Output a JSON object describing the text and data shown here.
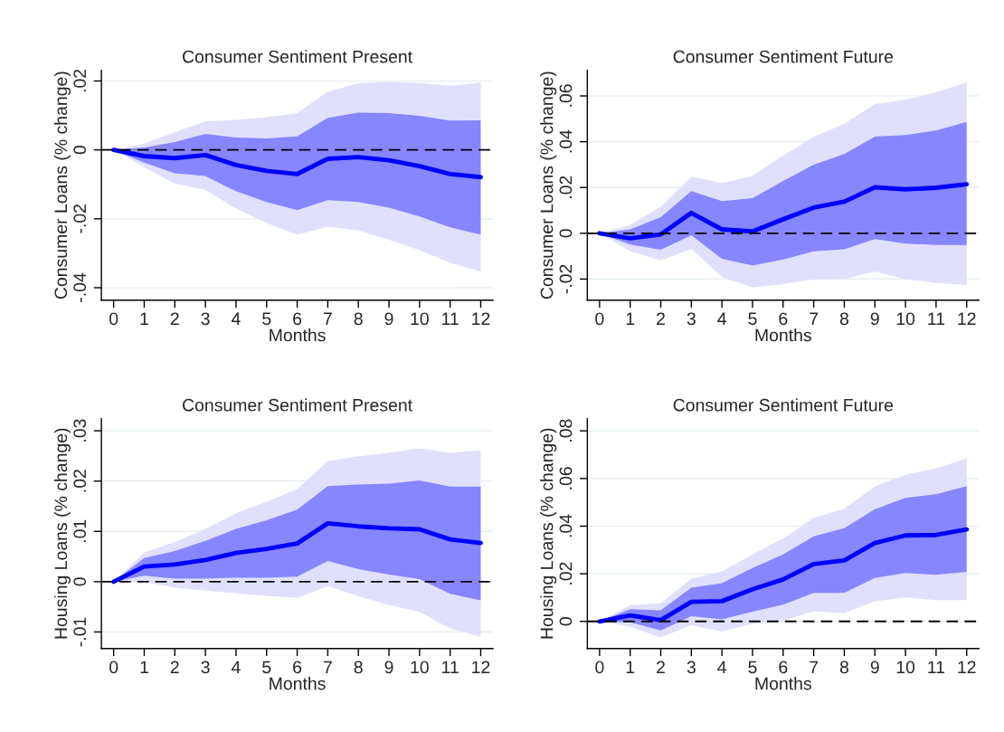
{
  "chart_data": [
    {
      "type": "line",
      "title": "Consumer Sentiment Present",
      "xlabel": "Months",
      "ylabel": "Consumer Loans (% change)",
      "x": [
        0,
        1,
        2,
        3,
        4,
        5,
        6,
        7,
        8,
        9,
        10,
        11,
        12
      ],
      "xlim": [
        -0.4,
        12.4
      ],
      "xticks": [
        0,
        1,
        2,
        3,
        4,
        5,
        6,
        7,
        8,
        9,
        10,
        11,
        12
      ],
      "ylim": [
        -0.0436,
        0.0231
      ],
      "yticks": [
        {
          "value": -0.04,
          "label": "-.04"
        },
        {
          "value": -0.02,
          "label": "-.02"
        },
        0,
        {
          "value": 0.02,
          "label": ".02"
        }
      ],
      "grid": "y",
      "ref_lines": [
        {
          "axis": "y",
          "value": 0,
          "line_style": "dashed",
          "color": "#000000"
        }
      ],
      "series": [
        {
          "color": "#e0e0fd",
          "values": [
            null,
            null,
            null,
            null,
            null,
            null,
            null,
            null,
            null,
            null,
            null,
            null,
            null
          ],
          "lower": [
            0,
            -0.005,
            -0.0098,
            -0.0116,
            -0.017,
            -0.0212,
            -0.0246,
            -0.0223,
            -0.0234,
            -0.0261,
            -0.0291,
            -0.0328,
            -0.0353
          ],
          "upper": [
            0,
            0.0018,
            0.0051,
            0.0083,
            0.0087,
            0.0095,
            0.0107,
            0.0169,
            0.0193,
            0.0198,
            0.0194,
            0.0186,
            0.0195
          ]
        },
        {
          "color": "#0000ff",
          "values": [
            0,
            -0.0018,
            -0.0024,
            -0.0015,
            -0.0044,
            -0.0061,
            -0.007,
            -0.0026,
            -0.0021,
            -0.003,
            -0.0047,
            -0.007,
            -0.0079
          ],
          "lower": [
            0,
            -0.0037,
            -0.0068,
            -0.0076,
            -0.012,
            -0.0151,
            -0.0175,
            -0.0146,
            -0.0151,
            -0.0168,
            -0.0193,
            -0.0225,
            -0.0246
          ],
          "upper": [
            0,
            0.0007,
            0.0023,
            0.0046,
            0.0036,
            0.0033,
            0.0039,
            0.0093,
            0.0108,
            0.0107,
            0.0099,
            0.0085,
            0.0086
          ]
        }
      ]
    },
    {
      "type": "line",
      "title": "Consumer Sentiment Future",
      "xlabel": "Months",
      "ylabel": "Consumer Loans (% change)",
      "x": [
        0,
        1,
        2,
        3,
        4,
        5,
        6,
        7,
        8,
        9,
        10,
        11,
        12
      ],
      "xlim": [
        -0.4,
        12.4
      ],
      "xticks": [
        0,
        1,
        2,
        3,
        4,
        5,
        6,
        7,
        8,
        9,
        10,
        11,
        12
      ],
      "ylim": [
        -0.0292,
        0.0712
      ],
      "yticks": [
        {
          "value": -0.02,
          "label": "-.02"
        },
        0,
        {
          "value": 0.02,
          "label": ".02"
        },
        {
          "value": 0.04,
          "label": ".04"
        },
        {
          "value": 0.06,
          "label": ".06"
        }
      ],
      "grid": "y",
      "ref_lines": [
        {
          "axis": "y",
          "value": 0,
          "line_style": "dashed",
          "color": "#000000"
        }
      ],
      "series": [
        {
          "color": "#e0e0fd",
          "values": [
            null,
            null,
            null,
            null,
            null,
            null,
            null,
            null,
            null,
            null,
            null,
            null,
            null
          ],
          "lower": [
            0,
            -0.0078,
            -0.0118,
            -0.0068,
            -0.0191,
            -0.0237,
            -0.0222,
            -0.0201,
            -0.0201,
            -0.0167,
            -0.02,
            -0.0217,
            -0.0226
          ],
          "upper": [
            0,
            0.0037,
            0.0116,
            0.0247,
            0.022,
            0.0251,
            0.0339,
            0.0421,
            0.0478,
            0.0564,
            0.0583,
            0.0616,
            0.0659
          ]
        },
        {
          "color": "#0000ff",
          "values": [
            0,
            -0.0022,
            -0.0005,
            0.0089,
            0.0017,
            0.0008,
            0.0061,
            0.0112,
            0.0138,
            0.0201,
            0.0192,
            0.0199,
            0.0214
          ],
          "lower": [
            0,
            -0.0049,
            -0.0072,
            -0.0009,
            -0.0111,
            -0.0141,
            -0.0114,
            -0.0079,
            -0.007,
            -0.0025,
            -0.0045,
            -0.0051,
            -0.0051
          ],
          "upper": [
            0,
            0.0017,
            0.007,
            0.0184,
            0.0141,
            0.0153,
            0.0228,
            0.03,
            0.0346,
            0.0422,
            0.0429,
            0.0449,
            0.0486
          ]
        }
      ]
    },
    {
      "type": "line",
      "title": "Consumer Sentiment Present",
      "xlabel": "Months",
      "ylabel": "Housing Loans (% change)",
      "x": [
        0,
        1,
        2,
        3,
        4,
        5,
        6,
        7,
        8,
        9,
        10,
        11,
        12
      ],
      "xlim": [
        -0.4,
        12.4
      ],
      "xticks": [
        0,
        1,
        2,
        3,
        4,
        5,
        6,
        7,
        8,
        9,
        10,
        11,
        12
      ],
      "ylim": [
        -0.0133,
        0.0324
      ],
      "yticks": [
        {
          "value": -0.01,
          "label": "-.01"
        },
        0,
        {
          "value": 0.01,
          "label": ".01"
        },
        {
          "value": 0.02,
          "label": ".02"
        },
        {
          "value": 0.03,
          "label": ".03"
        }
      ],
      "grid": "y",
      "ref_lines": [
        {
          "axis": "y",
          "value": 0,
          "line_style": "dashed",
          "color": "#000000"
        }
      ],
      "series": [
        {
          "color": "#e0e0fd",
          "values": [
            null,
            null,
            null,
            null,
            null,
            null,
            null,
            null,
            null,
            null,
            null,
            null,
            null
          ],
          "lower": [
            0,
            0.0,
            -0.0012,
            -0.0018,
            -0.0023,
            -0.0028,
            -0.0032,
            -0.0009,
            -0.0029,
            -0.0046,
            -0.006,
            -0.0093,
            -0.011
          ],
          "upper": [
            0,
            0.0058,
            0.0079,
            0.0105,
            0.0136,
            0.0159,
            0.0184,
            0.024,
            0.0249,
            0.0256,
            0.0265,
            0.0256,
            0.0261
          ]
        },
        {
          "color": "#0000ff",
          "values": [
            0,
            0.003,
            0.0034,
            0.0043,
            0.0057,
            0.0065,
            0.0076,
            0.0116,
            0.011,
            0.0106,
            0.0104,
            0.0084,
            0.0077
          ],
          "lower": [
            0,
            0.0012,
            0.0006,
            0.0006,
            0.0008,
            0.0008,
            0.001,
            0.0041,
            0.0025,
            0.0014,
            0.0005,
            -0.0024,
            -0.0037
          ],
          "upper": [
            0,
            0.0047,
            0.0061,
            0.0081,
            0.0105,
            0.0122,
            0.0143,
            0.019,
            0.0193,
            0.0195,
            0.0201,
            0.0189,
            0.0189
          ]
        }
      ]
    },
    {
      "type": "line",
      "title": "Consumer Sentiment Future",
      "xlabel": "Months",
      "ylabel": "Housing Loans (% change)",
      "x": [
        0,
        1,
        2,
        3,
        4,
        5,
        6,
        7,
        8,
        9,
        10,
        11,
        12
      ],
      "xlim": [
        -0.4,
        12.4
      ],
      "xticks": [
        0,
        1,
        2,
        3,
        4,
        5,
        6,
        7,
        8,
        9,
        10,
        11,
        12
      ],
      "ylim": [
        -0.0114,
        0.0851
      ],
      "yticks": [
        0,
        {
          "value": 0.02,
          "label": ".02"
        },
        {
          "value": 0.04,
          "label": ".04"
        },
        {
          "value": 0.06,
          "label": ".06"
        },
        {
          "value": 0.08,
          "label": ".08"
        }
      ],
      "grid": "y",
      "ref_lines": [
        {
          "axis": "y",
          "value": 0,
          "line_style": "dashed",
          "color": "#000000"
        }
      ],
      "series": [
        {
          "color": "#e0e0fd",
          "values": [
            null,
            null,
            null,
            null,
            null,
            null,
            null,
            null,
            null,
            null,
            null,
            null,
            null
          ],
          "lower": [
            0,
            -0.0023,
            -0.0067,
            -0.0016,
            -0.0042,
            -0.001,
            0.0003,
            0.0043,
            0.0034,
            0.0085,
            0.0101,
            0.0089,
            0.0089
          ],
          "upper": [
            0,
            0.0068,
            0.0076,
            0.018,
            0.021,
            0.0281,
            0.0348,
            0.0435,
            0.0473,
            0.0566,
            0.0616,
            0.0642,
            0.0684
          ]
        },
        {
          "color": "#0000ff",
          "values": [
            0,
            0.0025,
            0.0005,
            0.0082,
            0.0085,
            0.0135,
            0.0176,
            0.0241,
            0.0256,
            0.0329,
            0.0361,
            0.0363,
            0.0386
          ],
          "lower": [
            0,
            -0.0004,
            -0.0038,
            0.0022,
            0.0009,
            0.0041,
            0.007,
            0.012,
            0.012,
            0.0182,
            0.0203,
            0.0196,
            0.0208
          ],
          "upper": [
            0,
            0.0051,
            0.0047,
            0.0142,
            0.0161,
            0.0224,
            0.0281,
            0.0357,
            0.0391,
            0.0471,
            0.0519,
            0.0534,
            0.0568
          ]
        }
      ]
    }
  ]
}
